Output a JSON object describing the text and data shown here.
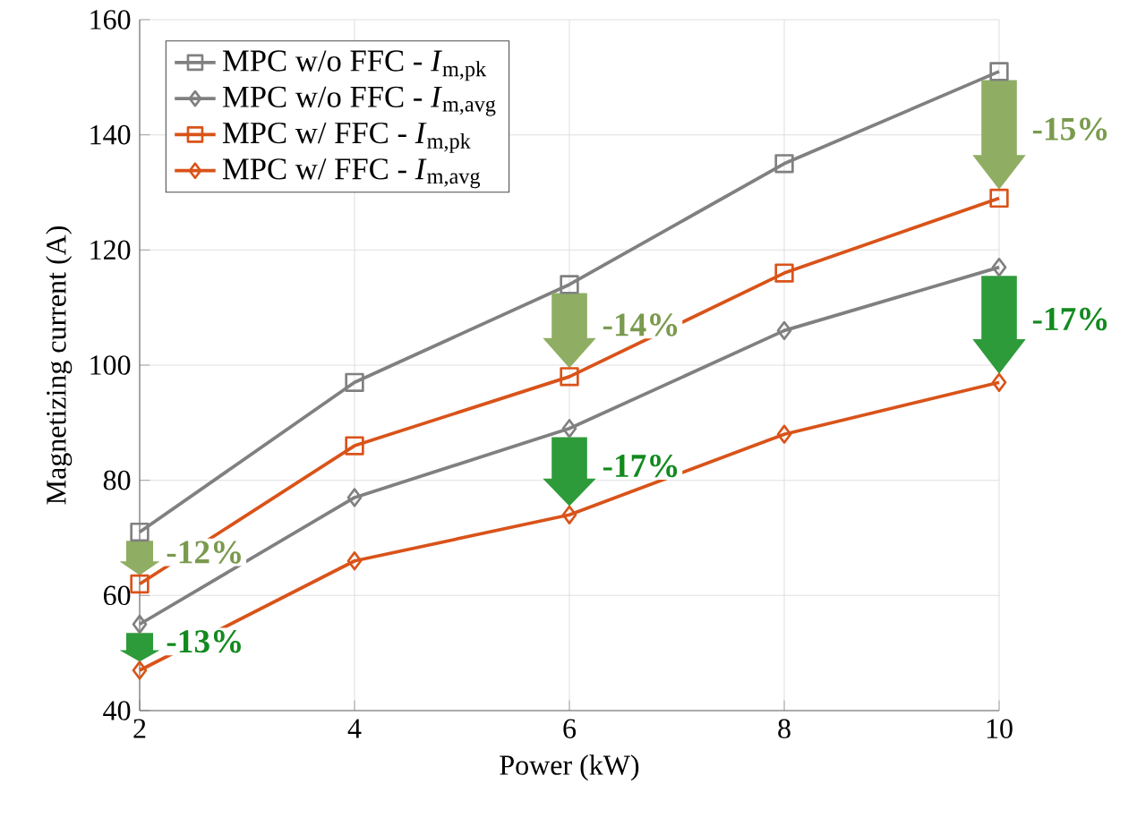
{
  "chart_data": {
    "type": "line",
    "xlabel": "Power (kW)",
    "ylabel": "Magnetizing current (A)",
    "x": [
      2,
      4,
      6,
      8,
      10
    ],
    "series": [
      {
        "name": "MPC w/o FFC - *I*$_{m,pk}$",
        "color": "#808080",
        "marker": "square",
        "values": [
          71,
          97,
          114,
          135,
          151
        ]
      },
      {
        "name": "MPC w/o FFC - *I*$_{m,avg}$",
        "color": "#808080",
        "marker": "diamond",
        "values": [
          55,
          77,
          89,
          106,
          117
        ]
      },
      {
        "name": "MPC w/ FFC - *I*$_{m,pk}$",
        "color": "#d95319",
        "marker": "square",
        "values": [
          62,
          86,
          98,
          116,
          129
        ]
      },
      {
        "name": "MPC w/ FFC - *I*$_{m,avg}$",
        "color": "#d95319",
        "marker": "diamond",
        "values": [
          47,
          66,
          74,
          88,
          97
        ]
      }
    ],
    "xlim": [
      2,
      10
    ],
    "xticks": [
      2,
      4,
      6,
      8,
      10
    ],
    "ylim": [
      40,
      160
    ],
    "yticks": [
      40,
      60,
      80,
      100,
      120,
      140,
      160
    ],
    "grid": true,
    "legend": "top left",
    "annotations": [
      {
        "text": "-12%",
        "x": 2,
        "y": 62
      },
      {
        "text": "-13%",
        "x": 2,
        "y": 47
      },
      {
        "text": "-14%",
        "x": 6,
        "y": 98
      },
      {
        "text": "-17%",
        "x": 6,
        "y": 74
      },
      {
        "text": "-15%",
        "x": 10,
        "y": 129
      },
      {
        "text": "-17%",
        "x": 10,
        "y": 97
      }
    ]
  }
}
